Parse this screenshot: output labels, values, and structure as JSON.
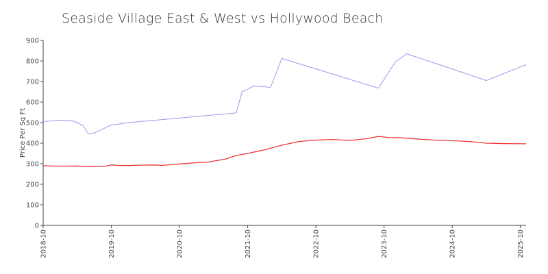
{
  "chart_data": {
    "type": "line",
    "title": "Seaside Village East & West vs Hollywood Beach",
    "xlabel": "",
    "ylabel": "Price Per Sq Ft",
    "ylim": [
      0,
      900
    ],
    "yticks": [
      0,
      100,
      200,
      300,
      400,
      500,
      600,
      700,
      800,
      900
    ],
    "xlim": [
      "2018-10",
      "2025-11"
    ],
    "xticks": [
      "2018-10",
      "2019-10",
      "2020-10",
      "2021-10",
      "2022-10",
      "2023-10",
      "2024-10",
      "2025-10"
    ],
    "grid": false,
    "legend": "none",
    "series": [
      {
        "color": "#9999ee",
        "points": [
          [
            "2018-10",
            505
          ],
          [
            "2019-01",
            512
          ],
          [
            "2019-03",
            510
          ],
          [
            "2019-04",
            500
          ],
          [
            "2019-05",
            485
          ],
          [
            "2019-06",
            445
          ],
          [
            "2019-07",
            450
          ],
          [
            "2019-10",
            488
          ],
          [
            "2020-01",
            500
          ],
          [
            "2020-10",
            522
          ],
          [
            "2021-03",
            535
          ],
          [
            "2021-07",
            544
          ],
          [
            "2021-08",
            548
          ],
          [
            "2021-09",
            650
          ],
          [
            "2021-10",
            662
          ],
          [
            "2021-11",
            678
          ],
          [
            "2022-01",
            675
          ],
          [
            "2022-02",
            670
          ],
          [
            "2022-04",
            812
          ],
          [
            "2023-09",
            668
          ],
          [
            "2023-12",
            795
          ],
          [
            "2024-02",
            835
          ],
          [
            "2025-04",
            705
          ],
          [
            "2025-11",
            782
          ]
        ]
      },
      {
        "color": "#ee3333",
        "points": [
          [
            "2018-10",
            290
          ],
          [
            "2019-01",
            288
          ],
          [
            "2019-04",
            289
          ],
          [
            "2019-06",
            286
          ],
          [
            "2019-09",
            288
          ],
          [
            "2019-10",
            294
          ],
          [
            "2019-11",
            292
          ],
          [
            "2020-01",
            291
          ],
          [
            "2020-03",
            293
          ],
          [
            "2020-05",
            294
          ],
          [
            "2020-07",
            292
          ],
          [
            "2020-10",
            299
          ],
          [
            "2021-01",
            305
          ],
          [
            "2021-03",
            308
          ],
          [
            "2021-06",
            322
          ],
          [
            "2021-08",
            340
          ],
          [
            "2021-10",
            350
          ],
          [
            "2022-01",
            368
          ],
          [
            "2022-04",
            390
          ],
          [
            "2022-07",
            408
          ],
          [
            "2022-10",
            415
          ],
          [
            "2023-01",
            418
          ],
          [
            "2023-04",
            413
          ],
          [
            "2023-07",
            422
          ],
          [
            "2023-09",
            433
          ],
          [
            "2023-11",
            427
          ],
          [
            "2024-01",
            426
          ],
          [
            "2024-04",
            420
          ],
          [
            "2024-07",
            415
          ],
          [
            "2024-10",
            412
          ],
          [
            "2025-01",
            408
          ],
          [
            "2025-04",
            400
          ],
          [
            "2025-07",
            398
          ],
          [
            "2025-11",
            397
          ]
        ]
      }
    ]
  }
}
